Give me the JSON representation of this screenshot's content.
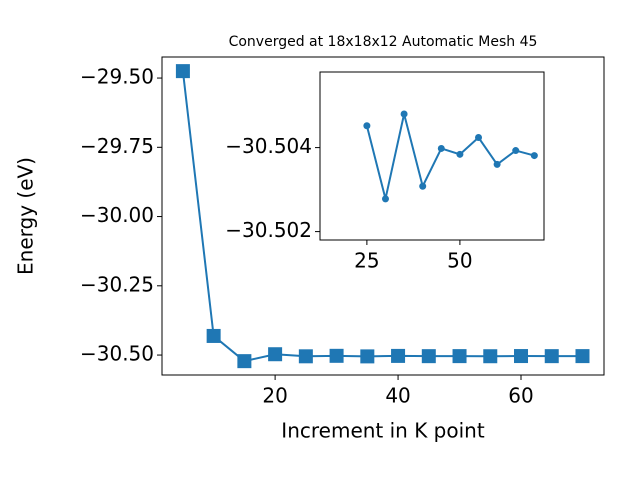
{
  "chart_data": [
    {
      "type": "line",
      "title": "Converged at 18x18x12 Automatic Mesh 45",
      "x_label": "Increment in K point",
      "y_label": "Energy (eV)",
      "x": [
        5,
        10,
        15,
        20,
        25,
        30,
        35,
        40,
        45,
        50,
        55,
        60,
        65,
        70
      ],
      "values": [
        -29.475,
        -30.431,
        -30.522,
        -30.497,
        -30.50452,
        -30.50278,
        -30.5048,
        -30.50308,
        -30.50398,
        -30.50384,
        -30.50424,
        -30.5036,
        -30.50393,
        -30.50381
      ],
      "color": "#1f77b4",
      "marker": "square",
      "xlim": [
        1.6,
        73.5
      ],
      "ylim": [
        -30.572,
        -29.424
      ],
      "xticks": [
        20,
        40,
        60
      ],
      "yticks": [
        {
          "value": -29.5,
          "label": "−29.50"
        },
        {
          "value": -29.75,
          "label": "−29.75"
        },
        {
          "value": -30.0,
          "label": "−30.00"
        },
        {
          "value": -30.25,
          "label": "−30.25"
        },
        {
          "value": -30.5,
          "label": "−30.50"
        }
      ]
    },
    {
      "type": "line",
      "x": [
        25,
        30,
        35,
        40,
        45,
        50,
        55,
        60,
        65,
        70
      ],
      "values": [
        -30.50452,
        -30.50278,
        -30.5048,
        -30.50308,
        -30.50398,
        -30.50384,
        -30.50424,
        -30.5036,
        -30.50393,
        -30.50381
      ],
      "color": "#1f77b4",
      "marker": "circle",
      "xlim": [
        12.4,
        72.6
      ],
      "ylim": [
        -30.5018,
        -30.5058
      ],
      "xticks": [
        25,
        50
      ],
      "yticks": [
        {
          "value": -30.504,
          "label": "−30.504"
        },
        {
          "value": -30.502,
          "label": "−30.502"
        }
      ]
    }
  ]
}
